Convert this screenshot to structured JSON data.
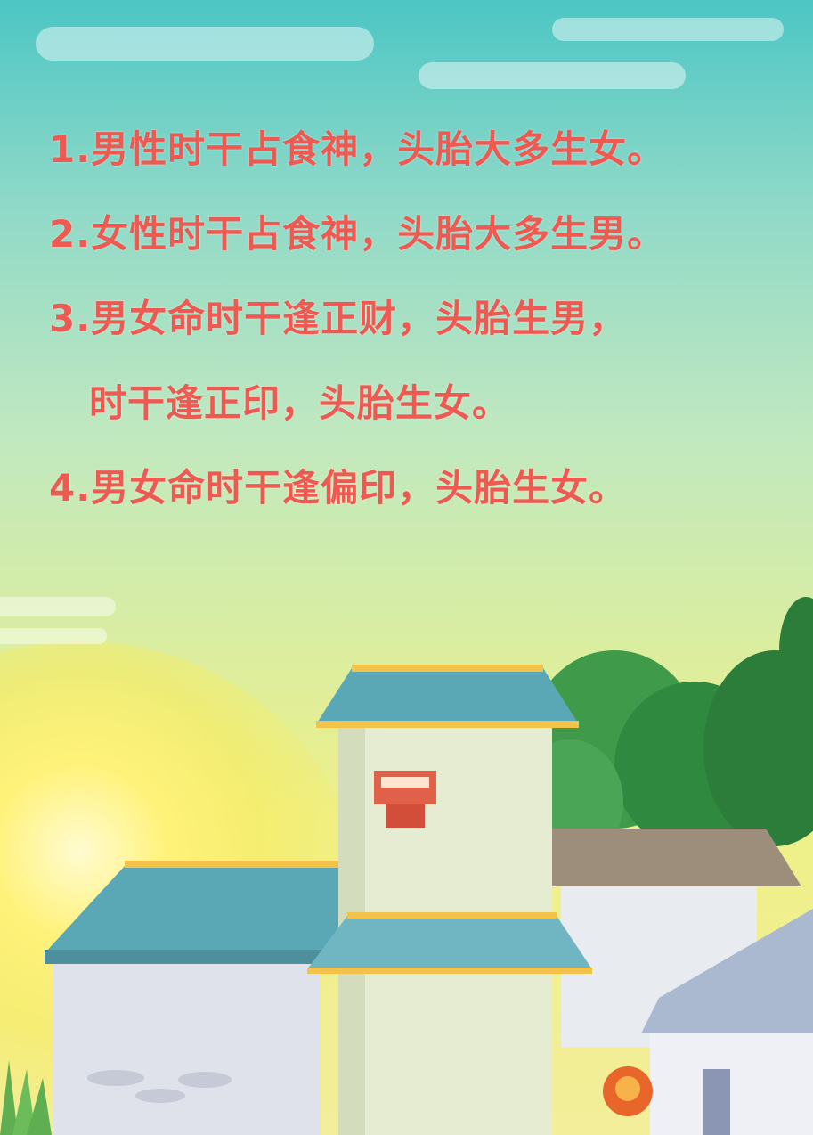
{
  "lines": [
    {
      "text": "1.男性时干占食神，头胎大多生女。"
    },
    {
      "text": "2.女性时干占食神，头胎大多生男。"
    },
    {
      "text": "3.男女命时干逢正财，头胎生男，"
    },
    {
      "text": "时干逢正印，头胎生女。"
    },
    {
      "text": "4.男女命时干逢偏印，头胎生女。"
    }
  ],
  "colors": {
    "text": "#ee5a52",
    "sky_top": "#4cc6c4",
    "sky_bottom": "#f2ee9a",
    "roof": "#5aa7b6",
    "roof_trim": "#f3c24a",
    "wall": "#e6ecd2",
    "tree": "#3f9a4a"
  }
}
